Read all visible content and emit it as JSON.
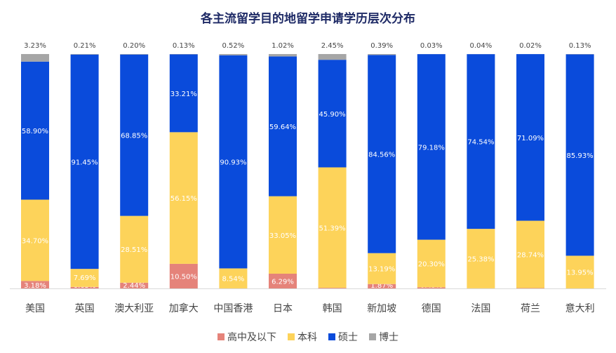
{
  "chart_data": {
    "type": "bar",
    "stacked": true,
    "title": "各主流留学目的地留学申请学历层次分布",
    "categories": [
      "美国",
      "英国",
      "澳大利亚",
      "加拿大",
      "中国香港",
      "日本",
      "韩国",
      "新加坡",
      "德国",
      "法国",
      "荷兰",
      "意大利"
    ],
    "series": [
      {
        "name": "高中及以下",
        "color": "#E5837A",
        "values": [
          3.18,
          0.65,
          2.44,
          10.5,
          0.01,
          6.29,
          0.26,
          1.87,
          0.49,
          0.04,
          0.14,
          0.0
        ]
      },
      {
        "name": "本科",
        "color": "#FDD35A",
        "values": [
          34.7,
          7.69,
          28.51,
          56.15,
          8.54,
          33.05,
          51.39,
          13.19,
          20.3,
          25.38,
          28.74,
          13.95
        ]
      },
      {
        "name": "硕士",
        "color": "#0A4BDB",
        "values": [
          58.9,
          91.45,
          68.85,
          33.21,
          90.93,
          59.64,
          45.9,
          84.56,
          79.18,
          74.54,
          71.09,
          85.93
        ]
      },
      {
        "name": "博士",
        "color": "#A6A6A6",
        "values": [
          3.23,
          0.21,
          0.2,
          0.13,
          0.52,
          1.02,
          2.45,
          0.39,
          0.03,
          0.04,
          0.02,
          0.13
        ]
      }
    ],
    "ylim": [
      0,
      100
    ],
    "legend": "bottom",
    "grid": false
  }
}
